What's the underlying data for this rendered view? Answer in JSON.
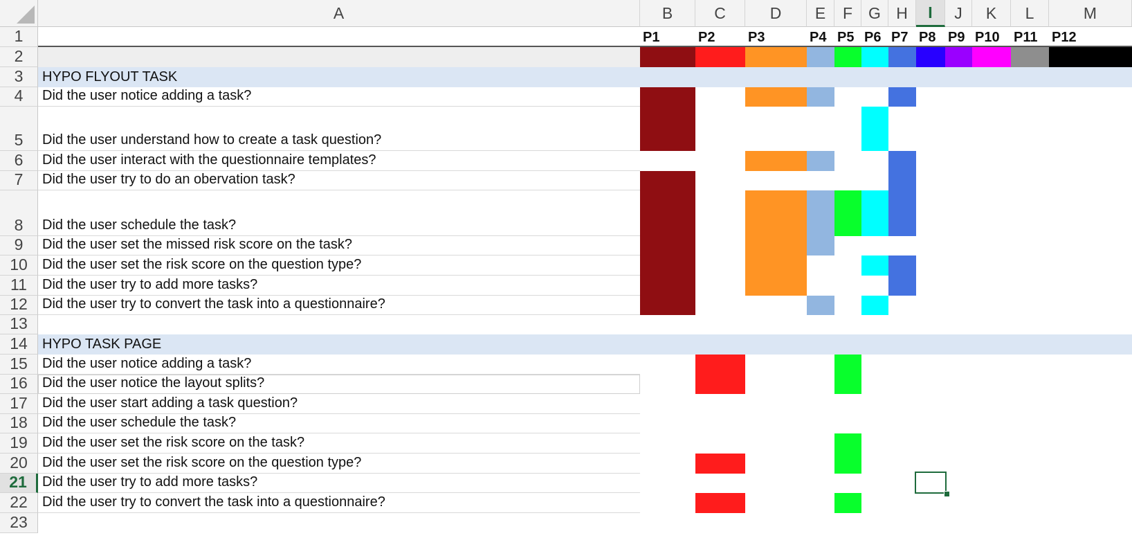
{
  "colors": {
    "P1": "#8f0e12",
    "P2": "#ff1c1c",
    "P3": "#ff9424",
    "P4": "#92b6e0",
    "P5": "#08ff2c",
    "P6": "#00ffff",
    "P7": "#4472e0",
    "P8": "#2800ff",
    "P9": "#9a00ff",
    "P10": "#ff00ff",
    "P11": "#8e8e8e",
    "P12": "#000000",
    "section_fill": "#dbe6f4",
    "legend_bar": "#eeeeee"
  },
  "column_letters": [
    "A",
    "B",
    "C",
    "D",
    "E",
    "F",
    "G",
    "H",
    "I",
    "J",
    "K",
    "L",
    "M"
  ],
  "selected_column": "I",
  "selected_row": 21,
  "row_numbers": [
    "1",
    "2",
    "3",
    "4",
    "5",
    "6",
    "7",
    "8",
    "9",
    "10",
    "11",
    "12",
    "13",
    "14",
    "15",
    "16",
    "17",
    "18",
    "19",
    "20",
    "21",
    "22",
    "23"
  ],
  "participants": [
    "P1",
    "P2",
    "P3",
    "P4",
    "P5",
    "P6",
    "P7",
    "P8",
    "P9",
    "P10",
    "P11",
    "P12"
  ],
  "sections": [
    {
      "title": "HYPO FLYOUT TASK",
      "rows": [
        {
          "row": 4,
          "question": "Did the user notice adding a task?",
          "yes": [
            "P1",
            "P3",
            "P4",
            "P7"
          ]
        },
        {
          "row": 5,
          "question": "Did the user understand how to create a task question?",
          "yes": [
            "P1",
            "P6"
          ]
        },
        {
          "row": 6,
          "question": "Did the user interact with the questionnaire templates?",
          "yes": [
            "P3",
            "P4",
            "P7"
          ]
        },
        {
          "row": 7,
          "question": "Did the user try to do an obervation task?",
          "yes": [
            "P1",
            "P7"
          ]
        },
        {
          "row": 8,
          "question": "Did the user schedule the task?",
          "yes": [
            "P1",
            "P3",
            "P4",
            "P5",
            "P6",
            "P7"
          ]
        },
        {
          "row": 9,
          "question": "Did the user set the missed risk score on the task?",
          "yes": [
            "P1",
            "P3",
            "P4"
          ]
        },
        {
          "row": 10,
          "question": "Did the user set the risk score on the question type?",
          "yes": [
            "P1",
            "P3",
            "P6",
            "P7"
          ]
        },
        {
          "row": 11,
          "question": "Did the user try to add more tasks?",
          "yes": [
            "P1",
            "P3",
            "P7"
          ]
        },
        {
          "row": 12,
          "question": "Did the user try to convert the task into a questionnaire?",
          "yes": [
            "P1",
            "P4",
            "P6"
          ]
        }
      ]
    },
    {
      "title": "HYPO TASK PAGE",
      "rows": [
        {
          "row": 15,
          "question": "Did the user notice adding a task?",
          "yes": [
            "P2",
            "P5"
          ]
        },
        {
          "row": 16,
          "question": "Did the user notice the layout splits?",
          "yes": [
            "P2",
            "P5"
          ]
        },
        {
          "row": 17,
          "question": "Did the user start adding a task question?",
          "yes": []
        },
        {
          "row": 18,
          "question": "Did the user schedule the task?",
          "yes": []
        },
        {
          "row": 19,
          "question": "Did the user set the risk score on the task?",
          "yes": [
            "P5"
          ]
        },
        {
          "row": 20,
          "question": "Did the user set the risk score on the question type?",
          "yes": [
            "P2",
            "P5"
          ]
        },
        {
          "row": 21,
          "question": "Did the user try to add more tasks?",
          "yes": []
        },
        {
          "row": 22,
          "question": "Did the user try to convert the task into a questionnaire?",
          "yes": [
            "P2",
            "P5"
          ]
        }
      ]
    }
  ]
}
